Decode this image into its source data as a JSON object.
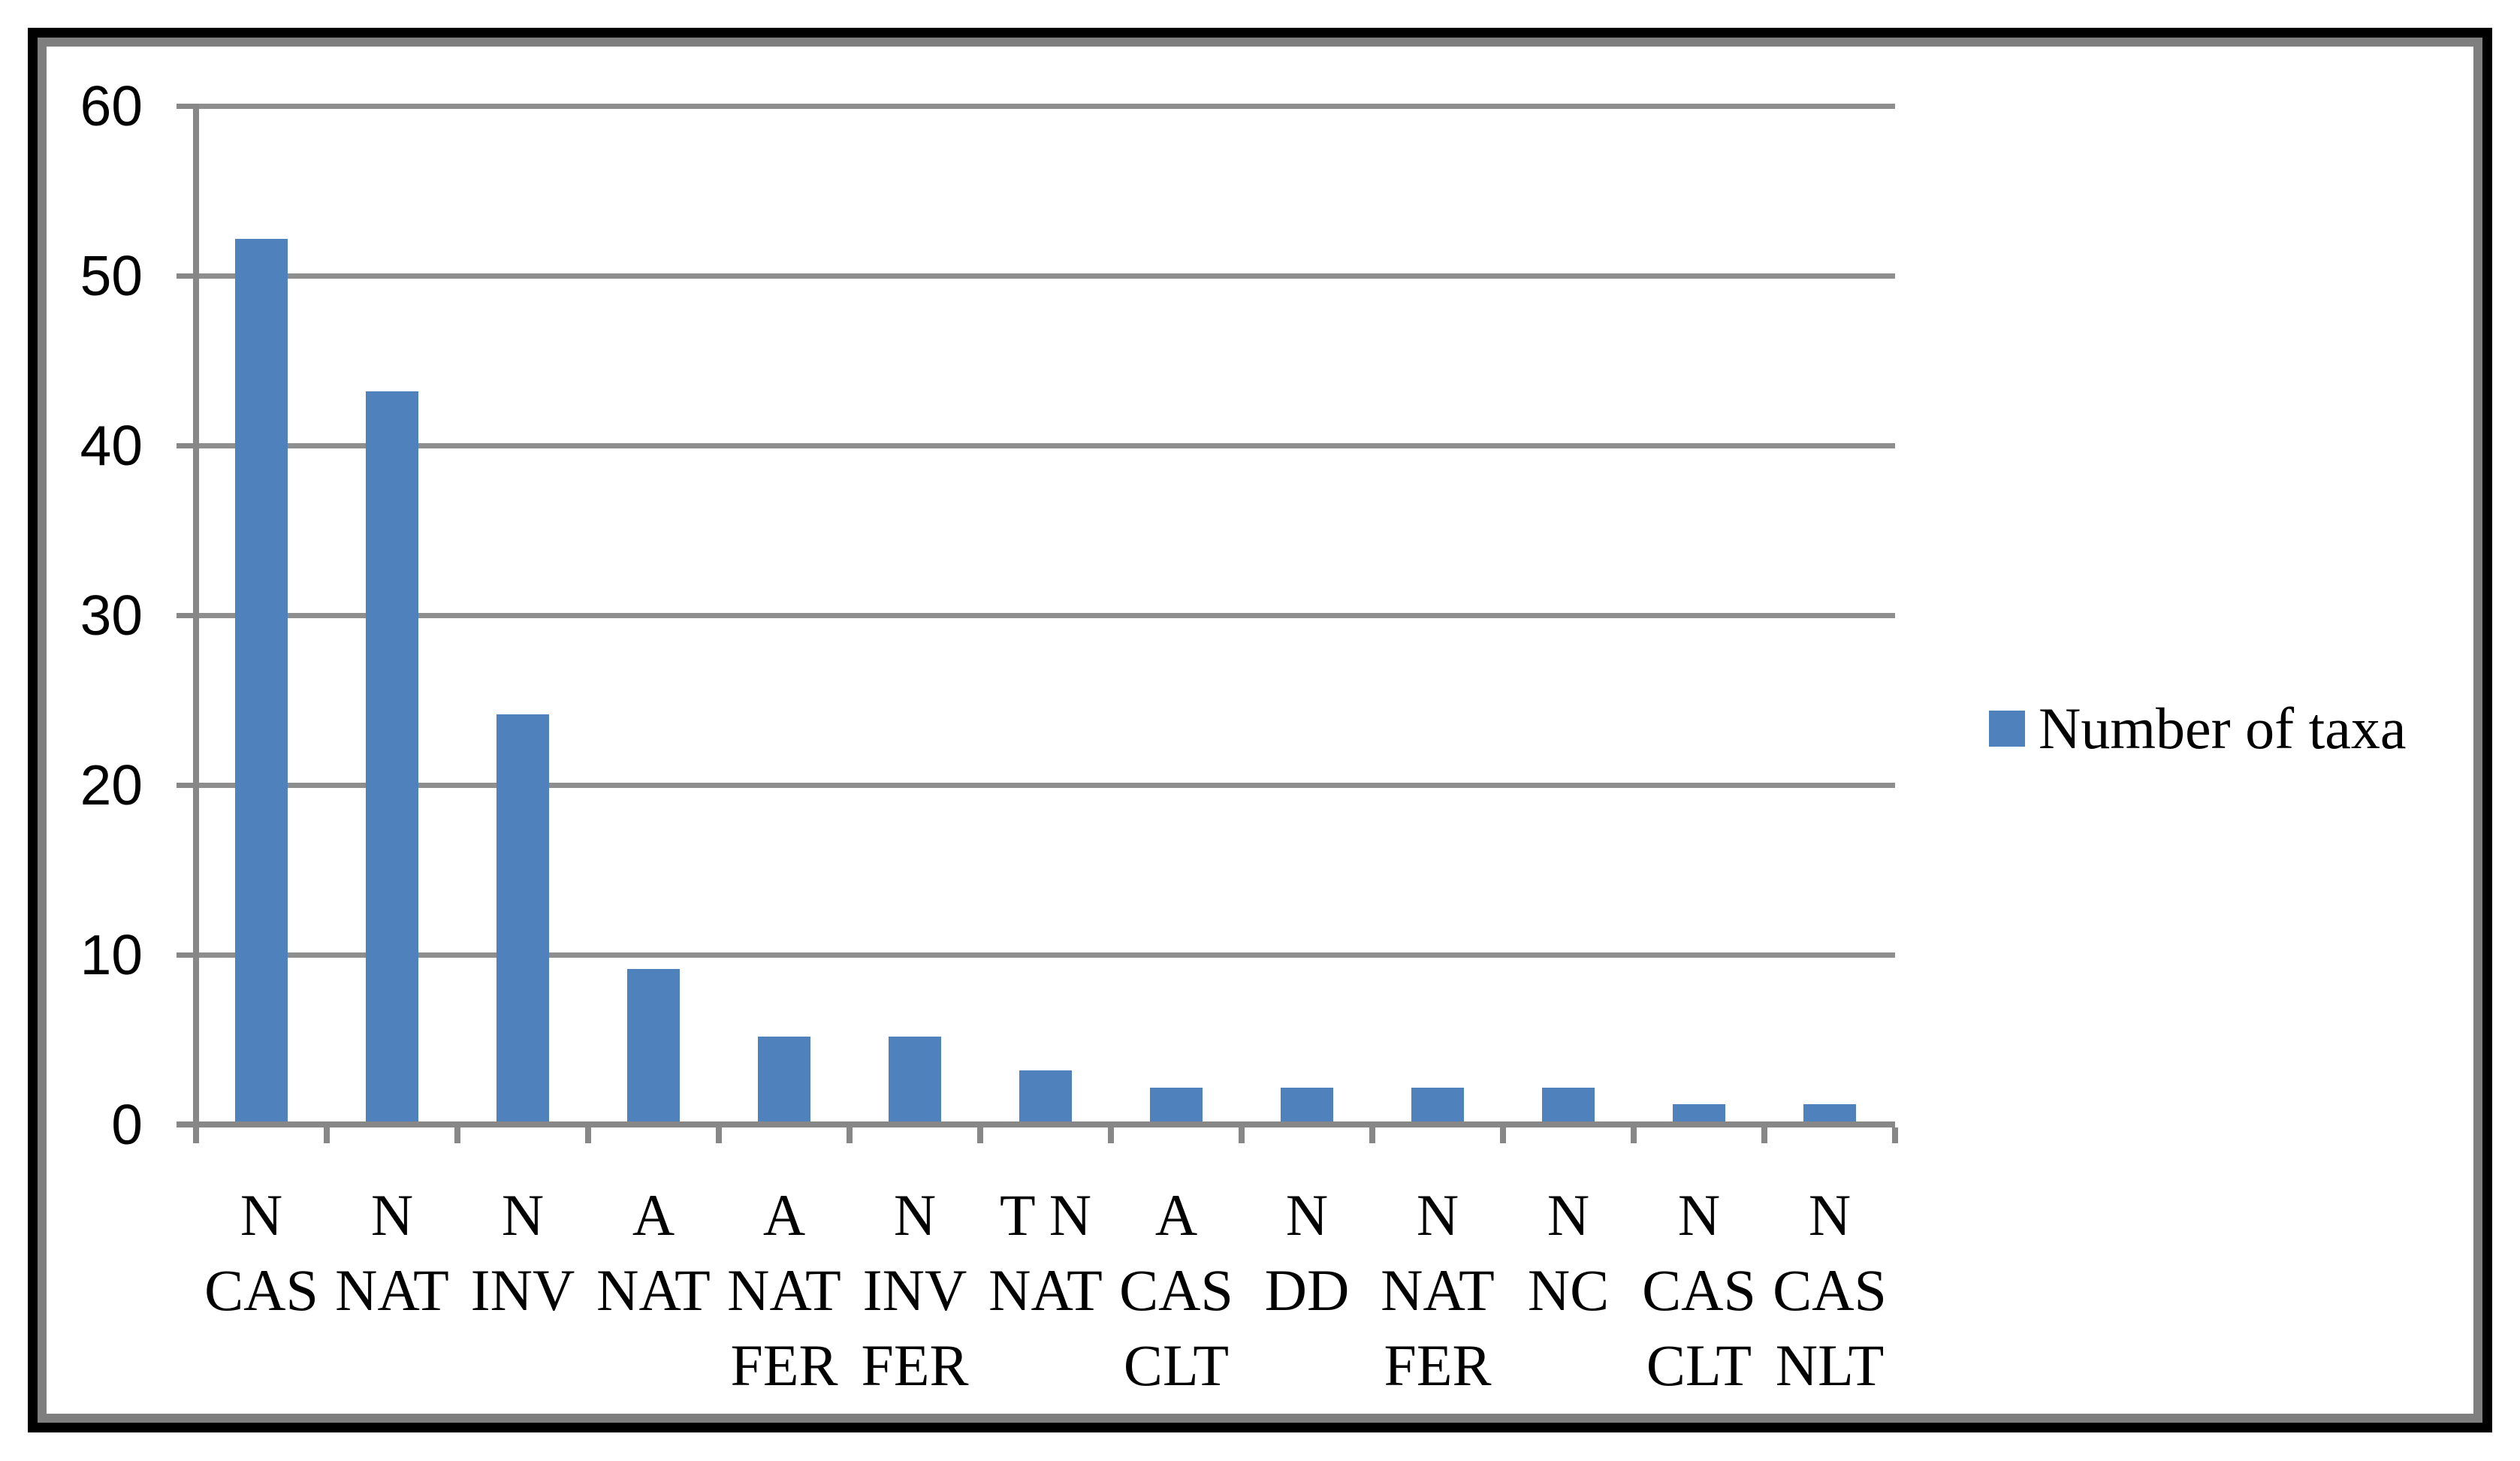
{
  "chart_data": {
    "type": "bar",
    "title": "",
    "xlabel": "",
    "ylabel": "",
    "categories": [
      "N CAS",
      "N NAT",
      "N INV",
      "A NAT",
      "A NAT FER",
      "N INV FER",
      "T N NAT",
      "A CAS CLT",
      "N DD",
      "N NAT FER",
      "N NC",
      "N CAS CLT",
      "N CAS NLT"
    ],
    "category_lines": [
      [
        "N",
        "CAS"
      ],
      [
        "N",
        "NAT"
      ],
      [
        "N",
        "INV"
      ],
      [
        "A",
        "NAT"
      ],
      [
        "A",
        "NAT",
        "FER"
      ],
      [
        "N",
        "INV",
        "FER"
      ],
      [
        "T N",
        "NAT"
      ],
      [
        "A",
        "CAS",
        "CLT"
      ],
      [
        "N",
        "DD"
      ],
      [
        "N",
        "NAT",
        "FER"
      ],
      [
        "N",
        "NC"
      ],
      [
        "N",
        "CAS",
        "CLT"
      ],
      [
        "N",
        "CAS",
        "NLT"
      ]
    ],
    "series": [
      {
        "name": "Number of taxa",
        "values": [
          52,
          43,
          24,
          9,
          5,
          5,
          3,
          2,
          2,
          2,
          2,
          1,
          1
        ]
      }
    ],
    "ylim": [
      0,
      60
    ],
    "yticks": [
      0,
      10,
      20,
      30,
      40,
      50,
      60
    ],
    "grid": true,
    "legend_position": "right"
  },
  "legend": {
    "label": "Number of taxa",
    "swatch_color": "#4F81BD"
  },
  "colors": {
    "bar": "#4F81BD",
    "gridline": "#8E8E8E",
    "axis": "#878787",
    "text": "#000000",
    "frame_outer": "#000000",
    "frame_inner": "#7F7F7F",
    "background": "#FFFFFF"
  }
}
